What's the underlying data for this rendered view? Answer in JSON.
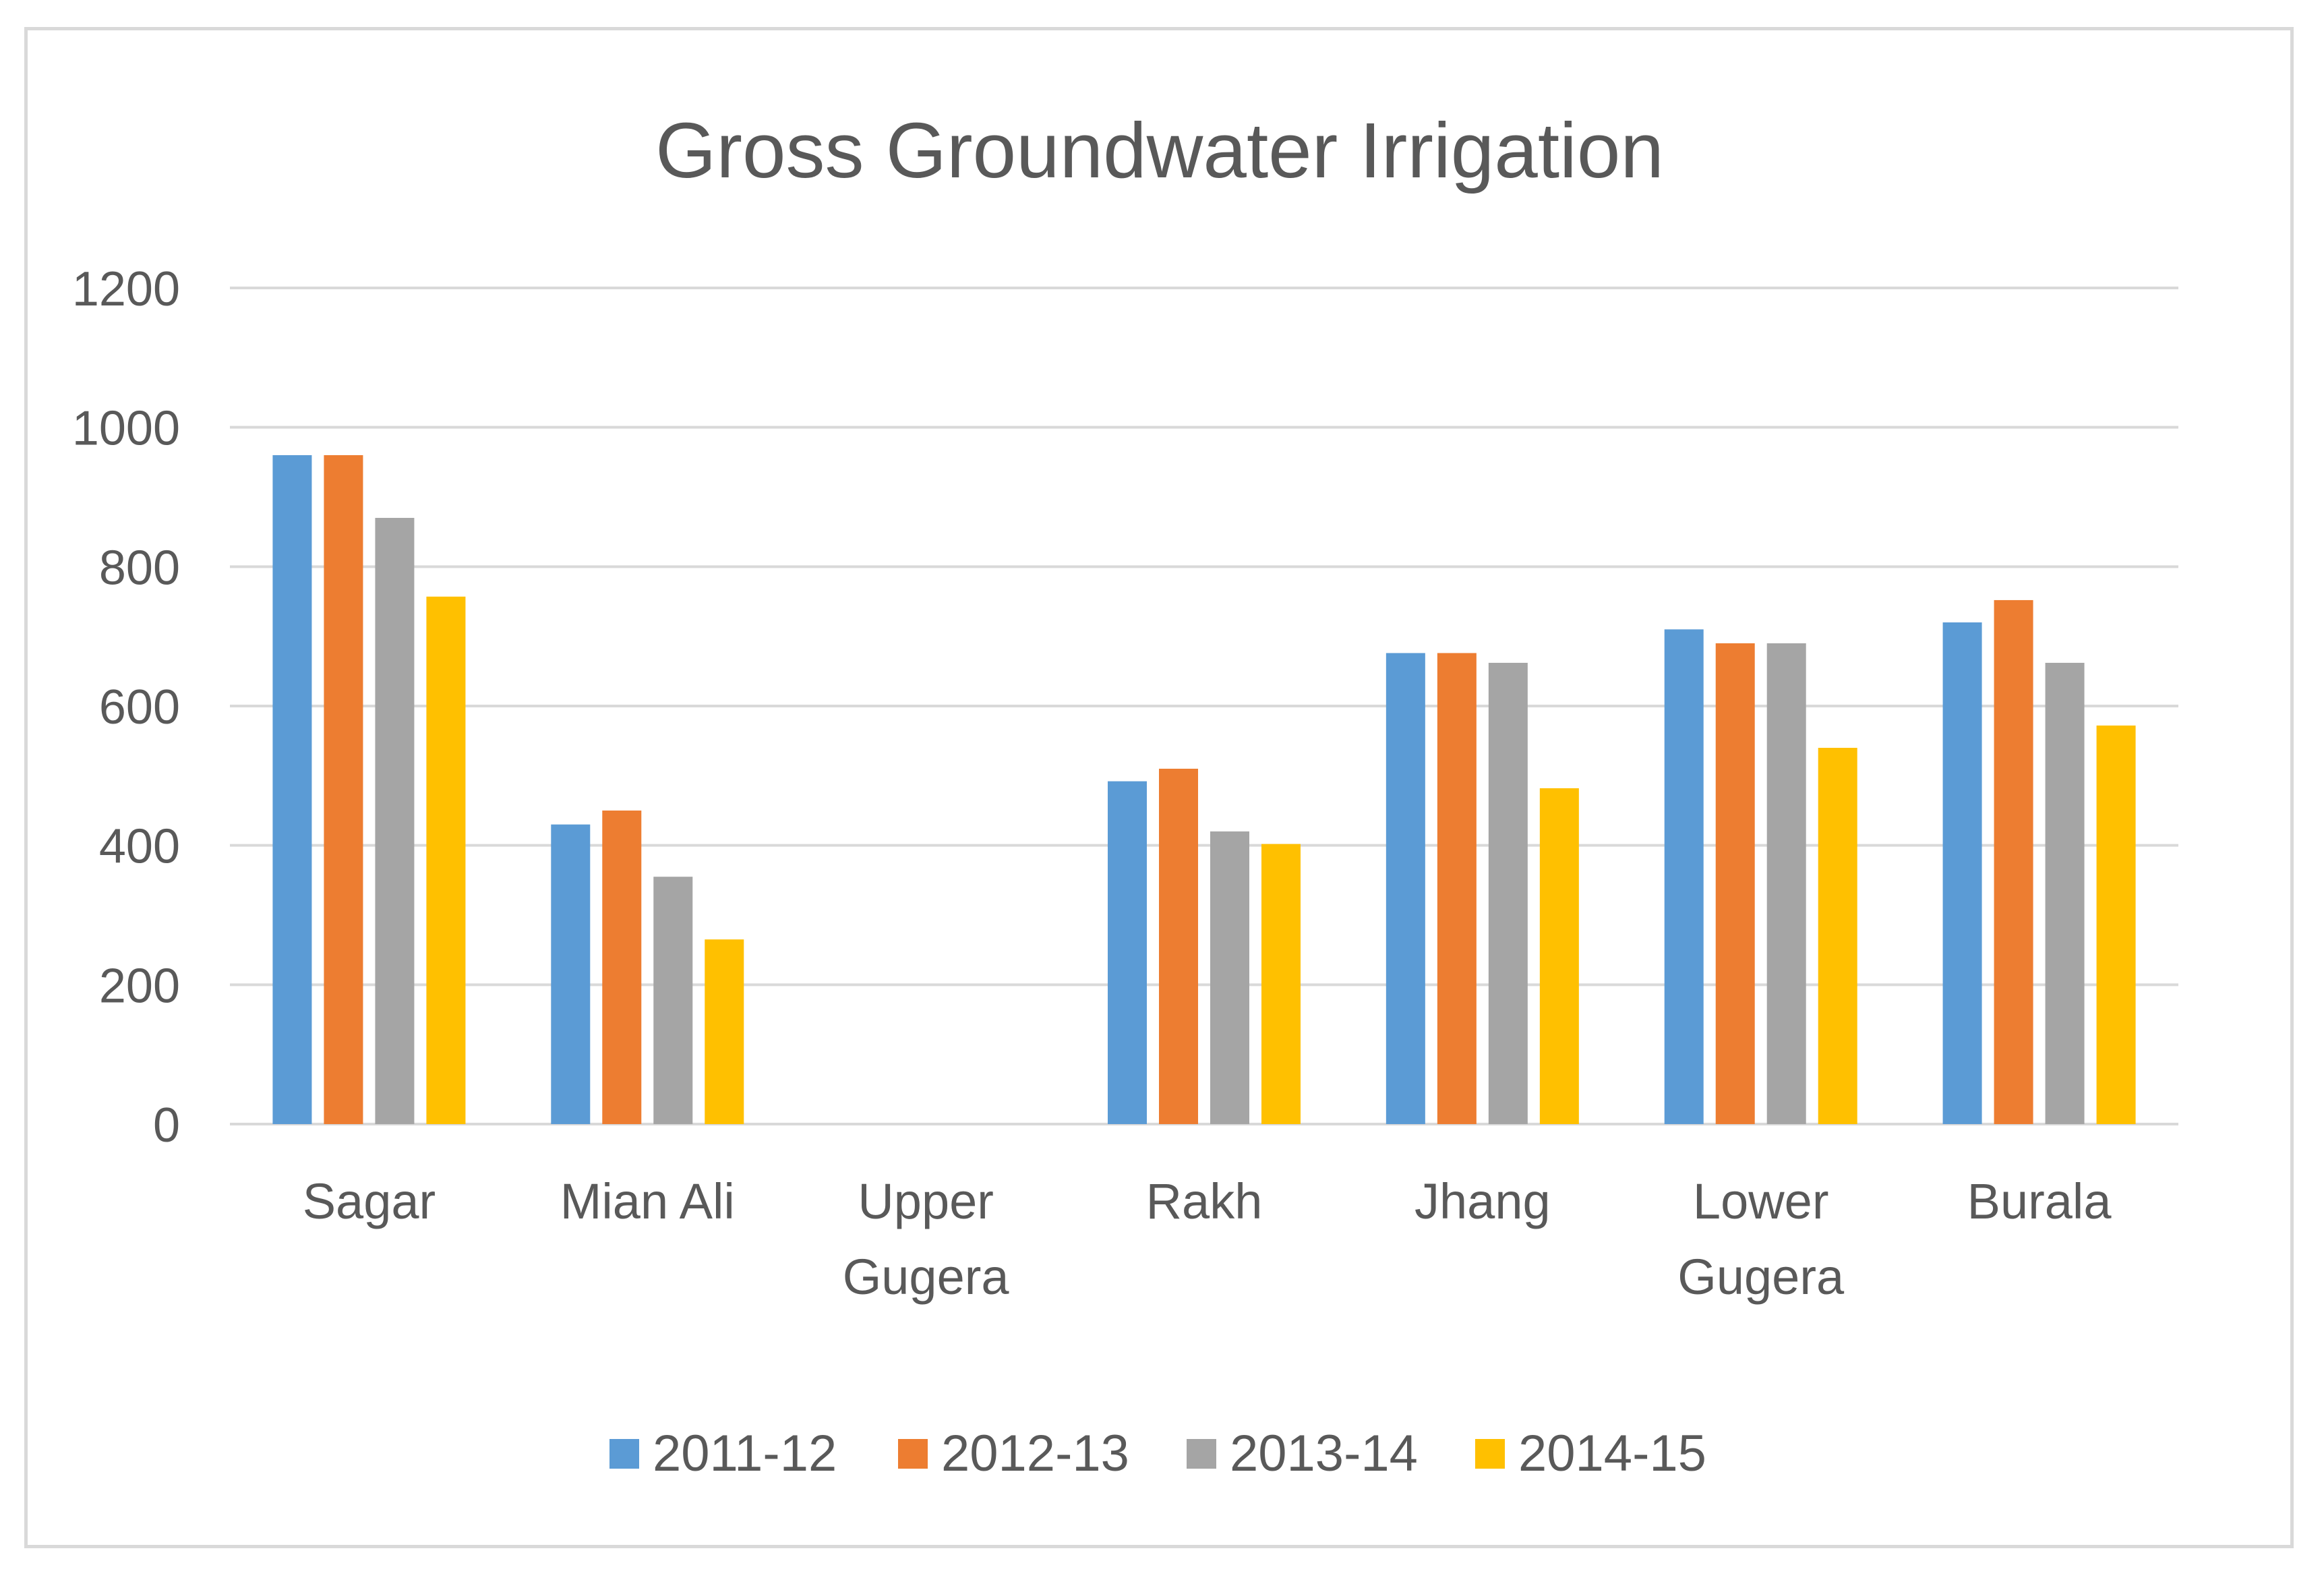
{
  "chart_data": {
    "type": "bar",
    "title": "Gross Groundwater Irrigation",
    "xlabel": "",
    "ylabel": "",
    "ylim": [
      0,
      1200
    ],
    "yticks": [
      0,
      200,
      400,
      600,
      800,
      1000,
      1200
    ],
    "grid": true,
    "legend_position": "bottom",
    "categories": [
      [
        "Sagar"
      ],
      [
        "Mian Ali"
      ],
      [
        "Upper",
        "Gugera"
      ],
      [
        "Rakh"
      ],
      [
        "Jhang"
      ],
      [
        "Lower",
        "Gugera"
      ],
      [
        "Burala"
      ]
    ],
    "series": [
      {
        "name": "2011-12",
        "color": "#5b9bd5",
        "values": [
          960,
          430,
          null,
          492,
          676,
          710,
          720
        ]
      },
      {
        "name": "2012-13",
        "color": "#ed7d31",
        "values": [
          960,
          450,
          null,
          510,
          676,
          690,
          752
        ]
      },
      {
        "name": "2013-14",
        "color": "#a5a5a5",
        "values": [
          870,
          355,
          null,
          420,
          662,
          690,
          662
        ]
      },
      {
        "name": "2014-15",
        "color": "#ffc000",
        "values": [
          757,
          265,
          null,
          402,
          482,
          540,
          572
        ]
      }
    ],
    "colors": {
      "grid": "#d9d9d9",
      "text": "#595959",
      "border": "#d9d9d9"
    }
  }
}
